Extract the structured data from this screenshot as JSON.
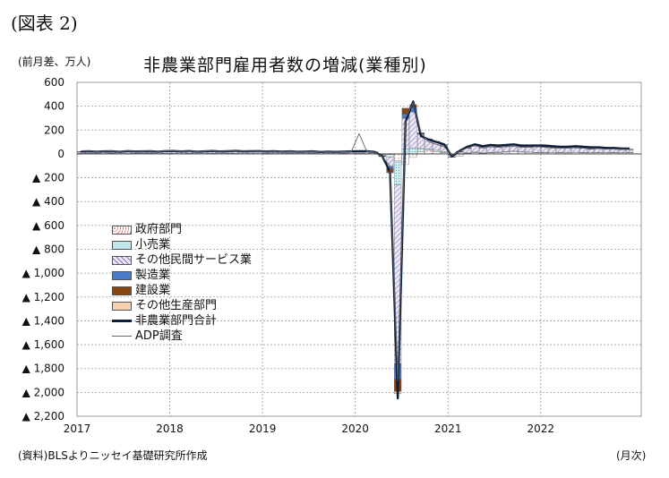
{
  "figure_label": "(図表 2)",
  "unit_label": "(前月差、万人)",
  "source_note": "(資料)BLSよりニッセイ基礎研究所作成",
  "x_unit_label": "(月次)",
  "chart_data": {
    "type": "bar",
    "title": "非農業部門雇用者数の増減(業種別)",
    "xlabel": "",
    "ylabel": "",
    "ylim": [
      -2200,
      600
    ],
    "yticks": [
      600,
      400,
      200,
      0,
      -200,
      -400,
      -600,
      -800,
      -1000,
      -1200,
      -1400,
      -1600,
      -1800,
      -2000,
      -2200
    ],
    "ytick_labels": [
      "600",
      "400",
      "200",
      "0",
      "▲ 200",
      "▲ 400",
      "▲ 600",
      "▲ 800",
      "▲ 1,000",
      "▲ 1,200",
      "▲ 1,400",
      "▲ 1,600",
      "▲ 1,800",
      "▲ 2,000",
      "▲ 2,200"
    ],
    "xtick_labels": [
      "2017",
      "2018",
      "2019",
      "2020",
      "2021",
      "2022"
    ],
    "x_start": "2017-01",
    "grid": true,
    "legend_position": "left-center",
    "colors": {
      "政府部門": "#e07a7a",
      "小売業": "#4fb3c8",
      "その他民間サービス業": "#8a78c0",
      "製造業": "#4a7ac8",
      "建設業": "#8b4513",
      "その他生産部門": "#f5d0b0",
      "非農業部門合計": "#0b1f3a",
      "ADP調査": "#666666"
    },
    "series": [
      {
        "name": "政府部門",
        "kind": "bar",
        "values": [
          2,
          3,
          2,
          2,
          3,
          2,
          2,
          2,
          3,
          2,
          2,
          2,
          3,
          2,
          2,
          2,
          2,
          3,
          2,
          2,
          3,
          2,
          2,
          2,
          3,
          2,
          2,
          3,
          2,
          2,
          3,
          2,
          2,
          2,
          3,
          2,
          3,
          2,
          2,
          2,
          -5,
          -60,
          -90,
          -30,
          20,
          30,
          20,
          10,
          -10,
          -20,
          5,
          10,
          5,
          8,
          10,
          15,
          20,
          15,
          12,
          10,
          10,
          12,
          10,
          8,
          12,
          10,
          8,
          10,
          8,
          10,
          8,
          10
        ]
      },
      {
        "name": "小売業",
        "kind": "bar",
        "values": [
          2,
          1,
          2,
          1,
          2,
          1,
          1,
          2,
          1,
          2,
          1,
          2,
          1,
          1,
          2,
          1,
          1,
          1,
          1,
          2,
          1,
          1,
          1,
          1,
          1,
          1,
          1,
          1,
          1,
          1,
          1,
          0,
          1,
          1,
          1,
          1,
          1,
          1,
          1,
          -5,
          -20,
          -200,
          40,
          50,
          25,
          10,
          10,
          10,
          -4,
          2,
          3,
          5,
          5,
          5,
          5,
          4,
          3,
          3,
          3,
          2,
          2,
          2,
          2,
          2,
          2,
          2,
          2,
          2,
          2,
          2,
          2,
          2
        ]
      },
      {
        "name": "その他民間サービス業",
        "kind": "bar",
        "values": [
          12,
          14,
          12,
          13,
          14,
          12,
          15,
          13,
          12,
          14,
          13,
          14,
          15,
          13,
          14,
          12,
          14,
          15,
          13,
          14,
          16,
          13,
          14,
          15,
          13,
          14,
          13,
          14,
          12,
          13,
          14,
          12,
          13,
          12,
          14,
          15,
          14,
          15,
          13,
          -10,
          -80,
          -1500,
          260,
          300,
          120,
          80,
          70,
          55,
          -10,
          15,
          40,
          50,
          40,
          45,
          40,
          45,
          50,
          40,
          42,
          45,
          45,
          40,
          35,
          38,
          40,
          35,
          30,
          32,
          30,
          28,
          25,
          24
        ]
      },
      {
        "name": "製造業",
        "kind": "bar",
        "values": [
          1,
          2,
          1,
          2,
          1,
          2,
          1,
          2,
          2,
          1,
          2,
          1,
          2,
          2,
          2,
          2,
          2,
          1,
          2,
          1,
          2,
          1,
          2,
          1,
          1,
          1,
          1,
          0,
          1,
          1,
          1,
          0,
          1,
          0,
          -1,
          0,
          1,
          1,
          0,
          -3,
          -20,
          -130,
          35,
          40,
          5,
          3,
          2,
          1,
          -1,
          2,
          2,
          3,
          3,
          3,
          3,
          2,
          3,
          3,
          3,
          3,
          3,
          3,
          3,
          3,
          3,
          3,
          2,
          2,
          2,
          2,
          2,
          2
        ]
      },
      {
        "name": "建設業",
        "kind": "bar",
        "values": [
          2,
          2,
          1,
          2,
          2,
          1,
          2,
          1,
          2,
          2,
          1,
          2,
          2,
          1,
          2,
          2,
          1,
          2,
          1,
          2,
          1,
          2,
          1,
          2,
          1,
          2,
          1,
          1,
          1,
          1,
          1,
          1,
          1,
          1,
          1,
          1,
          1,
          1,
          1,
          -3,
          -30,
          -100,
          45,
          20,
          5,
          3,
          2,
          2,
          -1,
          2,
          2,
          2,
          2,
          1,
          2,
          1,
          2,
          2,
          2,
          1,
          1,
          2,
          1,
          2,
          2,
          1,
          1,
          2,
          1,
          2,
          1,
          1
        ]
      },
      {
        "name": "その他生産部門",
        "kind": "bar",
        "values": [
          1,
          1,
          1,
          1,
          1,
          1,
          1,
          1,
          1,
          1,
          1,
          1,
          1,
          1,
          1,
          1,
          1,
          1,
          1,
          1,
          1,
          1,
          1,
          1,
          1,
          1,
          1,
          1,
          1,
          1,
          1,
          1,
          1,
          1,
          1,
          1,
          1,
          1,
          1,
          -2,
          -5,
          -20,
          5,
          5,
          2,
          1,
          1,
          1,
          -1,
          1,
          1,
          1,
          1,
          1,
          1,
          1,
          1,
          1,
          1,
          1,
          1,
          1,
          1,
          1,
          1,
          1,
          1,
          1,
          1,
          1,
          1,
          1
        ]
      },
      {
        "name": "非農業部門合計",
        "kind": "line",
        "values": [
          20,
          22,
          19,
          21,
          22,
          18,
          23,
          20,
          21,
          22,
          19,
          23,
          24,
          20,
          23,
          19,
          21,
          24,
          20,
          22,
          25,
          21,
          22,
          23,
          20,
          22,
          19,
          21,
          18,
          19,
          21,
          16,
          19,
          17,
          19,
          21,
          22,
          22,
          17,
          -20,
          -150,
          -2050,
          270,
          440,
          150,
          120,
          100,
          80,
          -20,
          25,
          60,
          80,
          65,
          75,
          70,
          75,
          80,
          70,
          70,
          70,
          70,
          65,
          60,
          60,
          65,
          60,
          55,
          55,
          50,
          50,
          45,
          45
        ]
      },
      {
        "name": "ADP調査",
        "kind": "line",
        "values": [
          25,
          23,
          20,
          22,
          24,
          20,
          24,
          21,
          22,
          23,
          20,
          24,
          25,
          21,
          22,
          20,
          22,
          25,
          20,
          23,
          24,
          22,
          21,
          22,
          20,
          21,
          18,
          20,
          17,
          18,
          20,
          15,
          18,
          16,
          18,
          20,
          170,
          20,
          15,
          -25,
          -100,
          -1900,
          300,
          430,
          180,
          100,
          80,
          60,
          -10,
          20,
          50,
          70,
          50,
          60,
          55,
          60,
          65,
          55,
          55,
          60,
          55,
          50,
          48,
          50,
          52,
          48,
          44,
          45,
          40,
          40,
          38,
          36
        ]
      }
    ]
  }
}
